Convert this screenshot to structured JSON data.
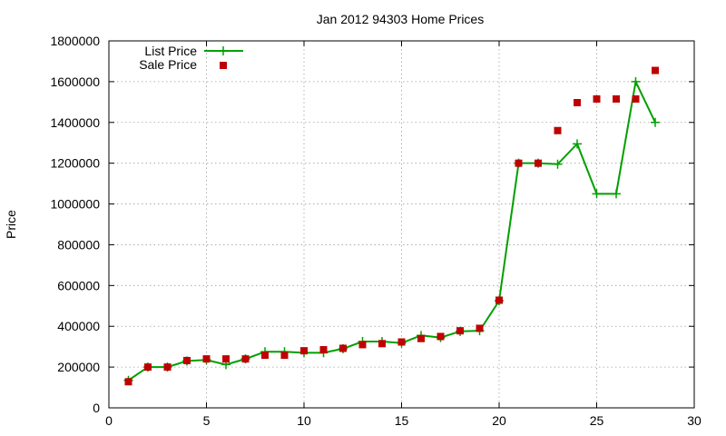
{
  "chart_data": {
    "type": "line",
    "title": "Jan 2012 94303 Home Prices",
    "xlabel": "",
    "ylabel": "Price",
    "xlim": [
      0,
      30
    ],
    "ylim": [
      0,
      1800000
    ],
    "x_ticks": [
      "0",
      "5",
      "10",
      "15",
      "20",
      "25",
      "30"
    ],
    "y_ticks": [
      "0",
      "200000",
      "400000",
      "600000",
      "800000",
      "1000000",
      "1200000",
      "1400000",
      "1600000",
      "1800000"
    ],
    "grid": true,
    "legend_position": "top-left",
    "series": [
      {
        "name": "List Price",
        "style": "line-plus",
        "color": "#00a000",
        "x": [
          1,
          2,
          3,
          4,
          5,
          6,
          7,
          8,
          9,
          10,
          11,
          12,
          13,
          14,
          15,
          16,
          17,
          18,
          19,
          20,
          21,
          22,
          23,
          24,
          25,
          26,
          27,
          28
        ],
        "values": [
          135000,
          200000,
          200000,
          230000,
          235000,
          212000,
          240000,
          275000,
          275000,
          270000,
          270000,
          290000,
          325000,
          325000,
          318000,
          355000,
          345000,
          375000,
          378000,
          525000,
          1200000,
          1200000,
          1195000,
          1295000,
          1050000,
          1050000,
          1600000,
          1400000
        ]
      },
      {
        "name": "Sale Price",
        "style": "square",
        "color": "#c00000",
        "x": [
          1,
          2,
          3,
          4,
          5,
          6,
          7,
          8,
          9,
          10,
          11,
          12,
          13,
          14,
          15,
          16,
          17,
          18,
          19,
          20,
          21,
          22,
          23,
          24,
          25,
          26,
          27,
          28
        ],
        "values": [
          128000,
          200000,
          200000,
          232000,
          240000,
          240000,
          240000,
          258000,
          258000,
          280000,
          285000,
          292000,
          310000,
          315000,
          323000,
          340000,
          350000,
          378000,
          390000,
          528000,
          1200000,
          1200000,
          1360000,
          1497000,
          1515000,
          1515000,
          1515000,
          1655000
        ]
      }
    ]
  }
}
